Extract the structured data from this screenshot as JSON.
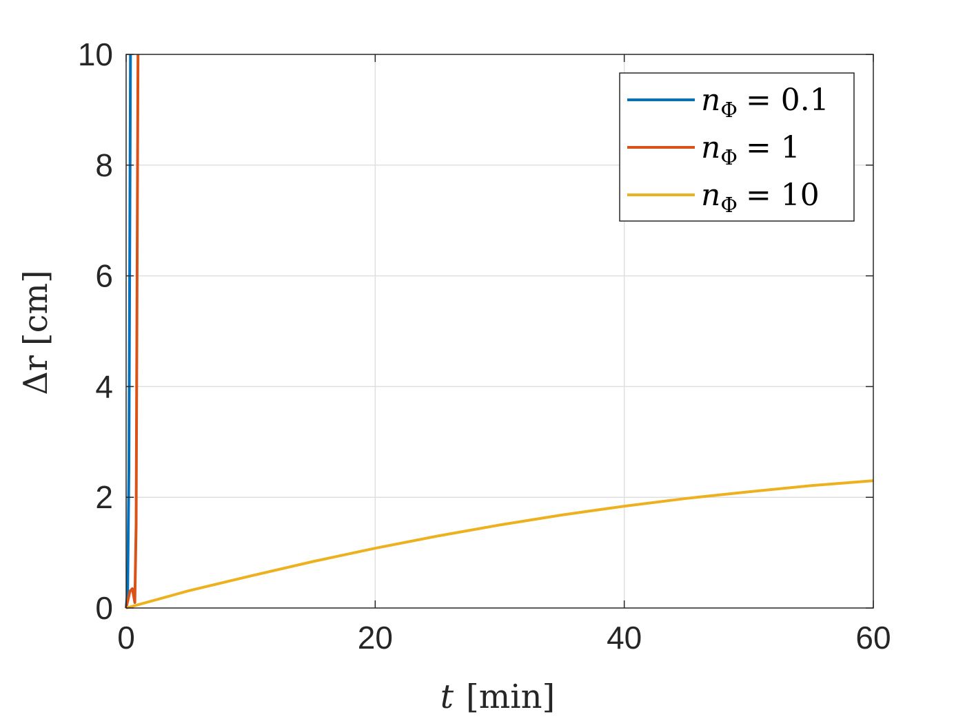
{
  "chart_data": {
    "type": "line",
    "title": "",
    "xlabel": {
      "var": "t",
      "unit": "[min]"
    },
    "ylabel": {
      "var": "Δr",
      "unit": "[cm]"
    },
    "xlim": [
      0,
      60
    ],
    "ylim": [
      0,
      10
    ],
    "xticks": [
      0,
      20,
      40,
      60
    ],
    "yticks": [
      0,
      2,
      4,
      6,
      8,
      10
    ],
    "xtick_labels": [
      "0",
      "20",
      "40",
      "60"
    ],
    "ytick_labels": [
      "0",
      "2",
      "4",
      "6",
      "8",
      "10"
    ],
    "grid": true,
    "legend_position": "top-right",
    "series": [
      {
        "name": "n_Φ = 0.1",
        "legend": {
          "var": "n",
          "sub": "Φ",
          "eq": "= 0.1"
        },
        "color": "#0072BD",
        "x": [
          0,
          0.12,
          0.22,
          0.3,
          0.35
        ],
        "y": [
          0,
          0.3,
          2.5,
          7.0,
          10
        ]
      },
      {
        "name": "n_Φ = 1",
        "legend": {
          "var": "n",
          "sub": "Φ",
          "eq": "= 1"
        },
        "color": "#D95319",
        "x": [
          0,
          0.3,
          0.5,
          0.7,
          0.8,
          0.88,
          0.95
        ],
        "y": [
          0,
          0.3,
          0.35,
          0.1,
          1.5,
          6.0,
          10
        ]
      },
      {
        "name": "n_Φ = 10",
        "legend": {
          "var": "n",
          "sub": "Φ",
          "eq": "= 10"
        },
        "color": "#EDB120",
        "x": [
          0,
          5,
          10,
          15,
          20,
          25,
          30,
          35,
          40,
          45,
          50,
          55,
          60
        ],
        "y": [
          0,
          0.31,
          0.58,
          0.84,
          1.08,
          1.3,
          1.5,
          1.68,
          1.84,
          1.98,
          2.1,
          2.21,
          2.3
        ]
      }
    ]
  }
}
